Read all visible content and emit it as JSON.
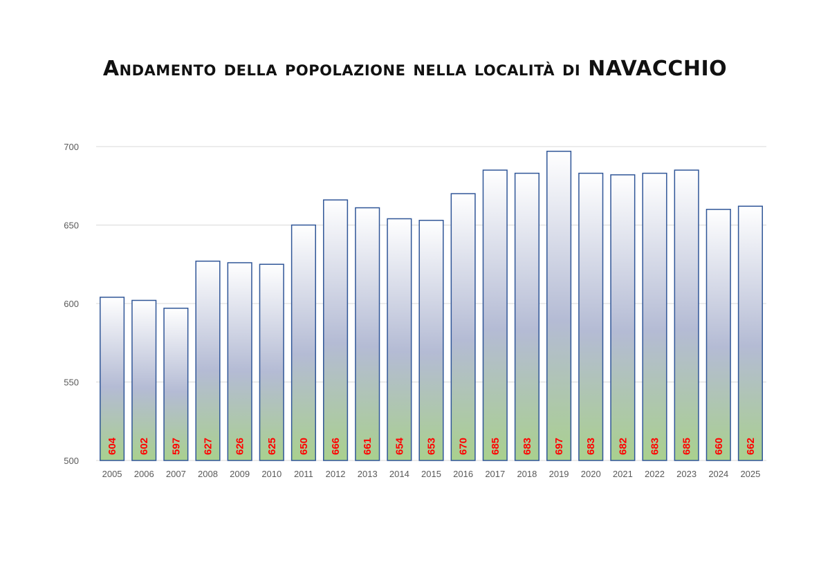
{
  "chart_data": {
    "type": "bar",
    "title": "Andamento della popolazione nella località di NAVACCHIO",
    "xlabel": "",
    "ylabel": "",
    "categories": [
      "2005",
      "2006",
      "2007",
      "2008",
      "2009",
      "2010",
      "2011",
      "2012",
      "2013",
      "2014",
      "2015",
      "2016",
      "2017",
      "2018",
      "2019",
      "2020",
      "2021",
      "2022",
      "2023",
      "2024",
      "2025"
    ],
    "values": [
      604,
      602,
      597,
      627,
      626,
      625,
      650,
      666,
      661,
      654,
      653,
      670,
      685,
      683,
      697,
      683,
      682,
      683,
      685,
      660,
      662
    ],
    "ylim": [
      500,
      700
    ],
    "yticks": [
      500,
      550,
      600,
      650,
      700
    ],
    "grid": true,
    "legend": "none",
    "data_labels": "inside-base-vertical",
    "colors": {
      "bar_border": "#2f5597",
      "gradient_top": "#ffffff",
      "gradient_mid": "#b4bbd4",
      "gradient_bottom": "#a9d08e",
      "label": "#ff0000",
      "grid": "#d9d9d9",
      "axis_text": "#595959"
    }
  }
}
